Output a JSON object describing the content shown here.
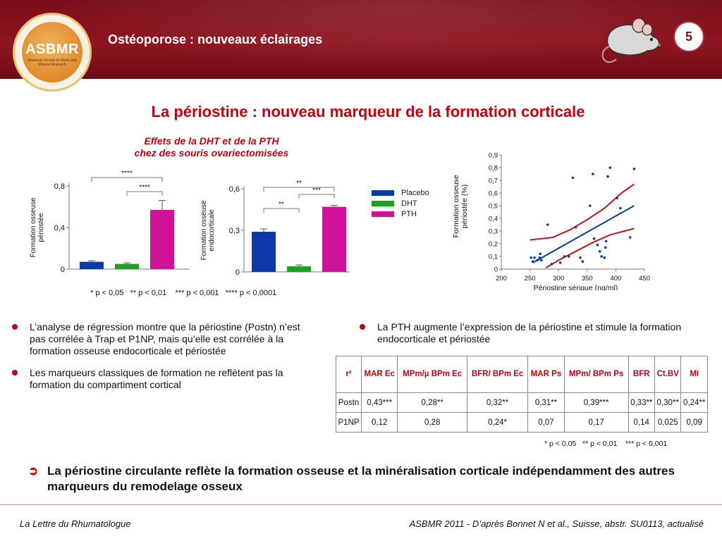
{
  "header": {
    "title": "Ostéoporose : nouveaux éclairages",
    "logo_text": "ASBMR",
    "logo_subtitle": "American Society for Bone and Mineral Research",
    "page_number": "5",
    "mouse_icon": "mouse-icon"
  },
  "main_title": "La périostine : nouveau marqueur de la formation corticale",
  "charts_caption_line1": "Effets de la DHT et de la PTH",
  "charts_caption_line2": "chez des souris ovariectomisées",
  "legend": {
    "items": [
      {
        "label": "Placebo",
        "color": "#0b3aa8"
      },
      {
        "label": "DHT",
        "color": "#1aa31a"
      },
      {
        "label": "PTH",
        "color": "#d0129a"
      }
    ]
  },
  "chart_data": [
    {
      "type": "bar",
      "ylabel_line1": "Formation osseuse",
      "ylabel_line2": "périostée",
      "categories": [
        "Placebo",
        "DHT",
        "PTH"
      ],
      "values": [
        0.07,
        0.05,
        0.57
      ],
      "errors": [
        0.01,
        0.01,
        0.09
      ],
      "yticks": [
        "0",
        "0,4",
        "0,8"
      ],
      "ytick_values": [
        0,
        0.4,
        0.8
      ],
      "ylim": [
        0,
        0.8
      ],
      "annotations": [
        {
          "from": 0,
          "to": 2,
          "label": "****"
        },
        {
          "from": 1,
          "to": 2,
          "label": "****"
        }
      ]
    },
    {
      "type": "bar",
      "ylabel_line1": "Formation osseuse",
      "ylabel_line2": "endocorticale",
      "categories": [
        "Placebo",
        "DHT",
        "PTH"
      ],
      "values": [
        0.29,
        0.04,
        0.47
      ],
      "errors": [
        0.02,
        0.01,
        0.01
      ],
      "yticks": [
        "0",
        "0,3",
        "0,6"
      ],
      "ytick_values": [
        0,
        0.3,
        0.6
      ],
      "ylim": [
        0,
        0.6
      ],
      "annotations": [
        {
          "from": 0,
          "to": 1,
          "label": "**"
        },
        {
          "from": 1,
          "to": 2,
          "label": "***"
        },
        {
          "from": 0,
          "to": 2,
          "label": "**"
        }
      ]
    },
    {
      "type": "scatter",
      "xlabel": "Périostine sérique (ng/ml)",
      "ylabel_line1": "Formation osseuse",
      "ylabel_line2": "périostée (%)",
      "xlim": [
        200,
        450
      ],
      "ylim": [
        0,
        0.9
      ],
      "xticks": [
        "200",
        "250",
        "300",
        "350",
        "400",
        "450"
      ],
      "xtick_values": [
        200,
        250,
        300,
        350,
        400,
        450
      ],
      "yticks": [
        "0",
        "0,1",
        "0,2",
        "0,3",
        "0,4",
        "0,5",
        "0,6",
        "0,7",
        "0,8",
        "0,9"
      ],
      "ytick_values": [
        0,
        0.1,
        0.2,
        0.3,
        0.4,
        0.5,
        0.6,
        0.7,
        0.8,
        0.9
      ],
      "points": [
        [
          252,
          0.09
        ],
        [
          255,
          0.06
        ],
        [
          258,
          0.09
        ],
        [
          263,
          0.07
        ],
        [
          267,
          0.09
        ],
        [
          268,
          0.12
        ],
        [
          270,
          0.07
        ],
        [
          281,
          0.35
        ],
        [
          288,
          0.04
        ],
        [
          303,
          0.05
        ],
        [
          310,
          0.1
        ],
        [
          318,
          0.1
        ],
        [
          325,
          0.72
        ],
        [
          330,
          0.33
        ],
        [
          338,
          0.09
        ],
        [
          342,
          0.06
        ],
        [
          355,
          0.5
        ],
        [
          360,
          0.75
        ],
        [
          362,
          0.24
        ],
        [
          368,
          0.19
        ],
        [
          372,
          0.14
        ],
        [
          375,
          0.1
        ],
        [
          380,
          0.09
        ],
        [
          382,
          0.17
        ],
        [
          383,
          0.22
        ],
        [
          386,
          0.73
        ],
        [
          390,
          0.8
        ],
        [
          402,
          0.56
        ],
        [
          408,
          0.48
        ],
        [
          425,
          0.25
        ],
        [
          432,
          0.79
        ]
      ],
      "regression": {
        "x": [
          255,
          432
        ],
        "y": [
          0.05,
          0.5
        ]
      },
      "ci_upper": {
        "x": [
          250,
          290,
          320,
          350,
          380,
          410,
          432
        ],
        "y": [
          0.23,
          0.25,
          0.31,
          0.39,
          0.48,
          0.6,
          0.67
        ]
      },
      "ci_lower": {
        "x": [
          278,
          300,
          330,
          360,
          390,
          415,
          432
        ],
        "y": [
          0.01,
          0.07,
          0.14,
          0.21,
          0.27,
          0.3,
          0.32
        ]
      }
    }
  ],
  "pvalues_left": "* p < 0,05   ** p < 0,01    *** p < 0,001   **** p < 0,0001",
  "bullets_left": [
    "L’analyse de régression montre que la périostine (Postn) n’est pas corrélée à Trap et P1NP, mais qu’elle est corrélée à la formation osseuse endocorticale et périostée",
    "Les marqueurs classiques de formation ne reflètent pas la formation du compartiment cortical"
  ],
  "bullets_right": [
    "La PTH augmente l’expression de la périostine et stimule la formation endocorticale et périostée"
  ],
  "table": {
    "headers": [
      "r²",
      "MAR Ec",
      "MPm/µ BPm Ec",
      "BFR/ BPm Ec",
      "MAR Ps",
      "MPm/ BPm Ps",
      "BFR",
      "Ct.BV",
      "MI"
    ],
    "rows": [
      [
        "Postn",
        "0,43***",
        "0,28**",
        "0,32**",
        "0,31**",
        "0,39***",
        "0,33**",
        "0,30**",
        "0,24**"
      ],
      [
        "P1NP",
        "0,12",
        "0,28",
        "0,24*",
        "0,07",
        "0,17",
        "0,14",
        "0,025",
        "0,09"
      ]
    ]
  },
  "pvalues_right": "* p < 0,05   ** p < 0,01    *** p < 0,001",
  "conclusion": "La périostine circulante reflète la formation osseuse et la minéralisation corticale indépendamment des autres marqueurs du remodelage osseux",
  "footer": {
    "left": "La Lettre du Rhumatologue",
    "right": "ASBMR 2011 - D’après Bonnet N et al., Suisse, abstr. SU0113, actualisé"
  }
}
